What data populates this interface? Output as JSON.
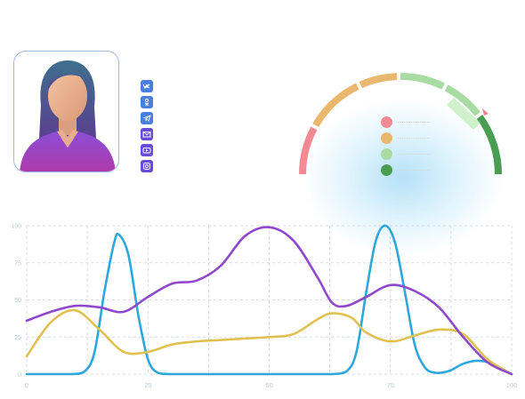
{
  "profile": {
    "avatar_icon": "female-avatar"
  },
  "social_icons": [
    {
      "name": "vk-icon",
      "color": "#4a7fe0"
    },
    {
      "name": "odnoklassniki-icon",
      "color": "#4a7fe0"
    },
    {
      "name": "telegram-icon",
      "color": "#4a7fe0"
    },
    {
      "name": "mail-icon",
      "color": "#6a4ad8"
    },
    {
      "name": "youtube-icon",
      "color": "#6a4ad8"
    },
    {
      "name": "instagram-icon",
      "color": "#6a4ad8"
    }
  ],
  "gauge": {
    "segments": [
      "#f28a93",
      "#e9b86e",
      "#9fd99a",
      "#58a65c"
    ],
    "legend": [
      {
        "color": "#f28a93"
      },
      {
        "color": "#e9b86e"
      },
      {
        "color": "#a8dca3"
      },
      {
        "color": "#4a9e52"
      }
    ]
  },
  "chart_data": {
    "type": "line",
    "xlim": [
      0,
      100
    ],
    "ylim": [
      0,
      100
    ],
    "x_ticks": [
      "0",
      "25",
      "50",
      "75",
      "100"
    ],
    "y_ticks": [
      "0",
      "25",
      "50",
      "75",
      "100"
    ],
    "grid": true,
    "series": [
      {
        "color": "#2ea8dc",
        "x": [
          0,
          9,
          12,
          14,
          16,
          18,
          19,
          21,
          23,
          25,
          27,
          30,
          40,
          50,
          60,
          63,
          66,
          68,
          70,
          72,
          74,
          76,
          78,
          80,
          82,
          84,
          87,
          90,
          93,
          96,
          100
        ],
        "y": [
          0,
          0,
          2,
          15,
          55,
          88,
          94,
          80,
          40,
          10,
          1,
          0,
          0,
          0,
          0,
          0,
          2,
          15,
          55,
          90,
          100,
          88,
          55,
          20,
          5,
          1,
          2,
          7,
          9,
          7,
          0
        ]
      },
      {
        "color": "#e0c050",
        "x": [
          0,
          5,
          10,
          15,
          20,
          25,
          30,
          35,
          40,
          45,
          50,
          55,
          60,
          63,
          67,
          70,
          75,
          80,
          85,
          90,
          95,
          100
        ],
        "y": [
          12,
          35,
          43,
          30,
          15,
          15,
          20,
          22,
          23,
          24,
          25,
          27,
          37,
          41,
          38,
          28,
          22,
          26,
          30,
          27,
          10,
          0
        ]
      },
      {
        "color": "#9048cc",
        "x": [
          0,
          5,
          10,
          15,
          20,
          25,
          30,
          35,
          40,
          45,
          50,
          55,
          60,
          63,
          66,
          70,
          75,
          80,
          85,
          90,
          95,
          100
        ],
        "y": [
          36,
          42,
          46,
          45,
          42,
          52,
          61,
          63,
          73,
          93,
          99,
          90,
          65,
          48,
          46,
          52,
          60,
          56,
          45,
          25,
          8,
          0
        ]
      }
    ]
  }
}
